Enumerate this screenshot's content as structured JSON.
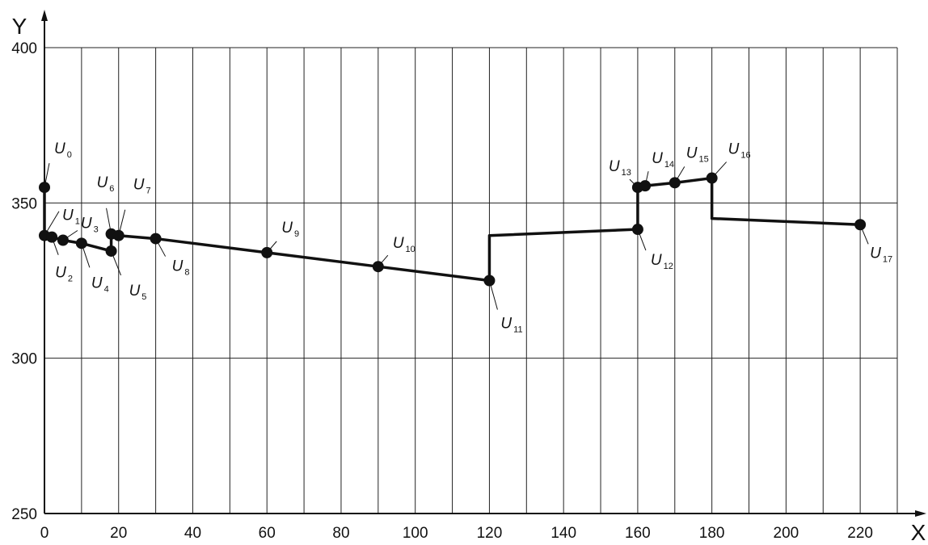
{
  "chart_data": {
    "type": "line",
    "xlabel": "X",
    "ylabel": "Y",
    "xlim": [
      0,
      230
    ],
    "ylim": [
      250,
      400
    ],
    "x_ticks": [
      0,
      20,
      40,
      60,
      80,
      100,
      120,
      140,
      160,
      180,
      200,
      220
    ],
    "y_ticks": [
      250,
      300,
      350,
      400
    ],
    "grid": true,
    "grid_x_step": 10,
    "grid_y_step": 50,
    "line_color": "#111111",
    "points": [
      {
        "label": "U",
        "sub": "0",
        "x": 0,
        "y": 355
      },
      {
        "label": "U",
        "sub": "1",
        "x": 0,
        "y": 339.5
      },
      {
        "label": "U",
        "sub": "2",
        "x": 2,
        "y": 339
      },
      {
        "label": "U",
        "sub": "3",
        "x": 5,
        "y": 338
      },
      {
        "label": "U",
        "sub": "4",
        "x": 10,
        "y": 337
      },
      {
        "label": "U",
        "sub": "5",
        "x": 18,
        "y": 334.5
      },
      {
        "label": "U",
        "sub": "6",
        "x": 18,
        "y": 340
      },
      {
        "label": "U",
        "sub": "7",
        "x": 20,
        "y": 339.5
      },
      {
        "label": "U",
        "sub": "8",
        "x": 30,
        "y": 338.5
      },
      {
        "label": "U",
        "sub": "9",
        "x": 60,
        "y": 334
      },
      {
        "label": "U",
        "sub": "10",
        "x": 90,
        "y": 329.5
      },
      {
        "label": "U",
        "sub": "11",
        "x": 120,
        "y": 325
      },
      {
        "label": "U",
        "sub": "12",
        "x": 160,
        "y": 341.5
      },
      {
        "label": "U",
        "sub": "13",
        "x": 160,
        "y": 355
      },
      {
        "label": "U",
        "sub": "14",
        "x": 162,
        "y": 355.5
      },
      {
        "label": "U",
        "sub": "15",
        "x": 170,
        "y": 356.5
      },
      {
        "label": "U",
        "sub": "16",
        "x": 180,
        "y": 358
      },
      {
        "label": "U",
        "sub": "17",
        "x": 220,
        "y": 343
      }
    ],
    "segments": [
      {
        "points": [
          [
            0,
            355
          ],
          [
            0,
            339.5
          ],
          [
            2,
            339
          ],
          [
            5,
            338
          ],
          [
            10,
            337
          ],
          [
            18,
            334.5
          ],
          [
            18,
            340
          ],
          [
            20,
            339.5
          ],
          [
            30,
            338.5
          ],
          [
            60,
            334
          ],
          [
            90,
            329.5
          ],
          [
            120,
            325
          ],
          [
            120,
            339.5
          ],
          [
            160,
            341.5
          ],
          [
            160,
            355
          ],
          [
            162,
            355.5
          ],
          [
            170,
            356.5
          ],
          [
            180,
            358
          ],
          [
            180,
            345
          ],
          [
            220,
            343
          ]
        ]
      }
    ]
  }
}
